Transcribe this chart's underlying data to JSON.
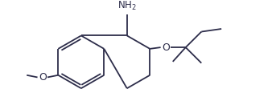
{
  "bg_color": "#ffffff",
  "line_color": "#2d2d4a",
  "text_color": "#2d2d4a",
  "lw": 1.3,
  "fontsize": 8.5,
  "figsize": [
    3.43,
    1.36
  ],
  "dpi": 100
}
